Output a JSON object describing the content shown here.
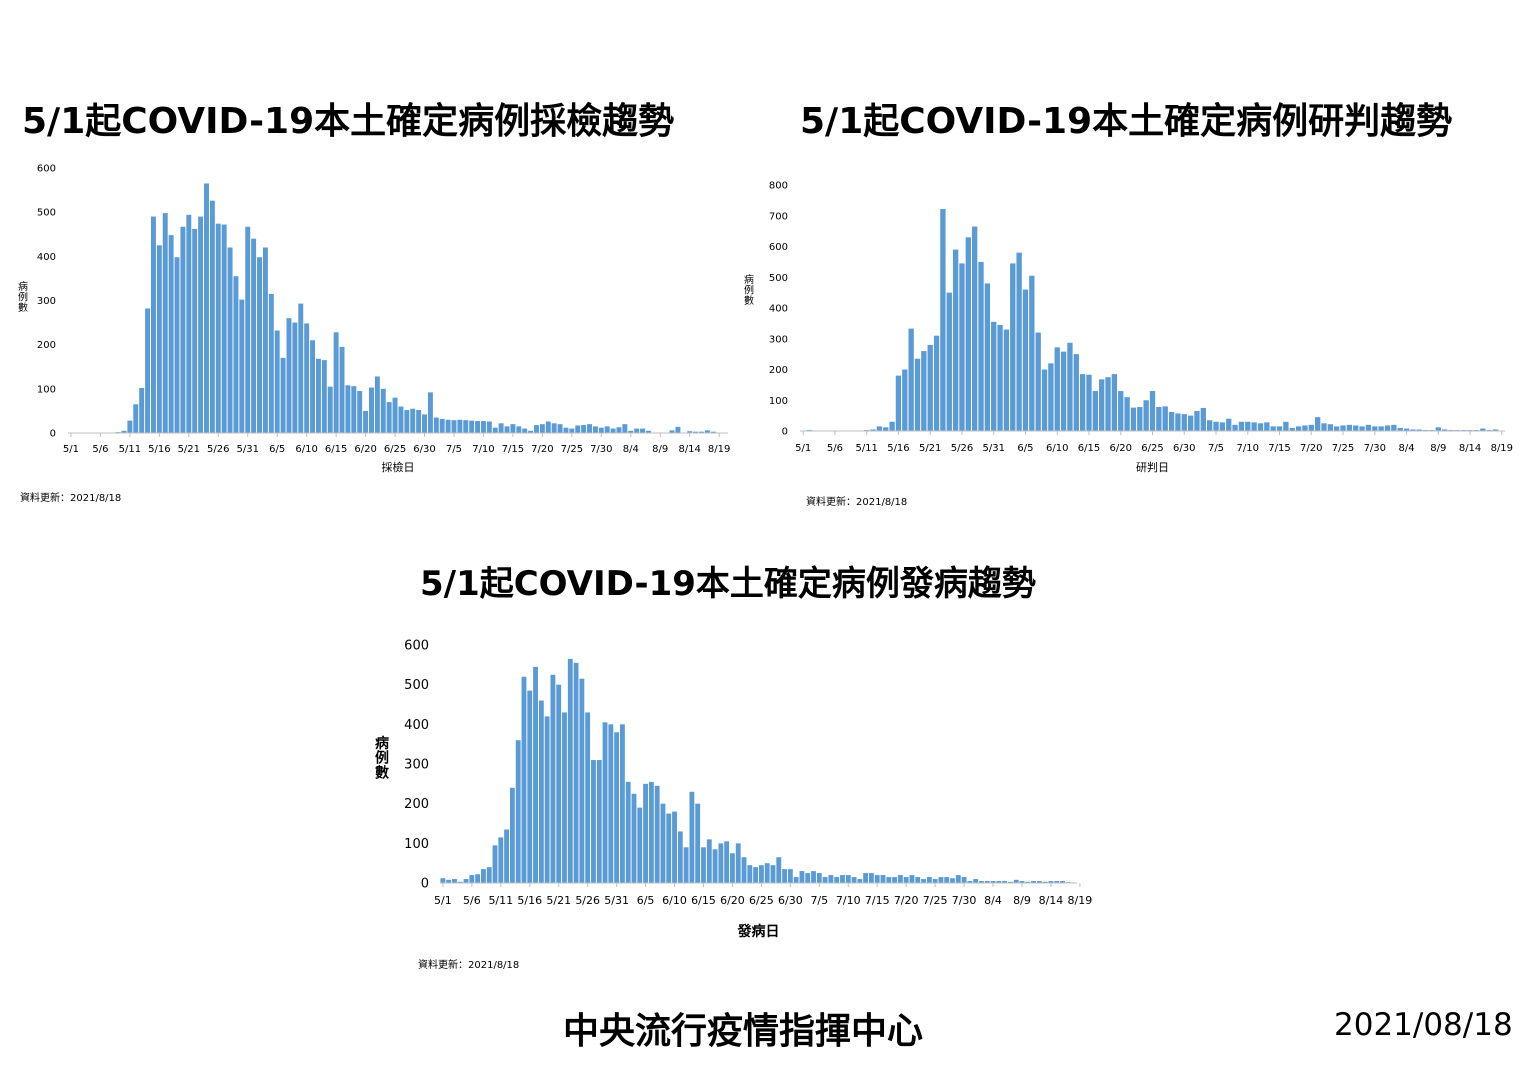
{
  "footer": {
    "organization": "中央流行疫情指揮中心",
    "date": "2021/08/18"
  },
  "colors": {
    "bar": "#5b9bd5",
    "axis": "#bfbfbf"
  },
  "chart_data": [
    {
      "type": "bar",
      "title": "5/1起COVID-19本土確定病例採檢趨勢",
      "xlabel": "採檢日",
      "ylabel": "病例數",
      "update_note": "資料更新：2021/8/18",
      "ylim": [
        0,
        600
      ],
      "yticks": [
        0,
        100,
        200,
        300,
        400,
        500,
        600
      ],
      "x_start": "5/1",
      "x_tick_labels": [
        "5/1",
        "5/6",
        "5/11",
        "5/16",
        "5/21",
        "5/26",
        "5/31",
        "6/5",
        "6/10",
        "6/15",
        "6/20",
        "6/25",
        "6/30",
        "7/5",
        "7/10",
        "7/15",
        "7/20",
        "7/25",
        "7/30",
        "8/4",
        "8/9",
        "8/14",
        "8/19"
      ],
      "values": [
        0,
        0,
        0,
        0,
        0,
        0,
        0,
        0,
        2,
        5,
        28,
        65,
        102,
        282,
        490,
        425,
        498,
        448,
        398,
        467,
        494,
        462,
        490,
        565,
        526,
        474,
        472,
        420,
        355,
        302,
        467,
        440,
        398,
        420,
        315,
        232,
        170,
        260,
        250,
        293,
        248,
        210,
        168,
        165,
        105,
        228,
        195,
        108,
        106,
        95,
        50,
        103,
        128,
        100,
        70,
        80,
        60,
        52,
        55,
        52,
        42,
        92,
        35,
        32,
        30,
        29,
        30,
        29,
        28,
        27,
        27,
        26,
        12,
        22,
        15,
        20,
        15,
        10,
        5,
        18,
        20,
        26,
        22,
        20,
        12,
        10,
        17,
        18,
        20,
        15,
        12,
        15,
        10,
        13,
        20,
        5,
        10,
        10,
        5,
        0,
        0,
        0,
        6,
        14,
        0,
        4,
        3,
        3,
        6,
        3,
        0,
        0
      ]
    },
    {
      "type": "bar",
      "title": "5/1起COVID-19本土確定病例研判趨勢",
      "xlabel": "研判日",
      "ylabel": "病例數",
      "update_note": "資料更新：2021/8/18",
      "ylim": [
        0,
        800
      ],
      "yticks": [
        0,
        100,
        200,
        300,
        400,
        500,
        600,
        700,
        800
      ],
      "x_start": "5/1",
      "x_tick_labels": [
        "5/1",
        "5/6",
        "5/11",
        "5/16",
        "5/21",
        "5/26",
        "5/31",
        "6/5",
        "6/10",
        "6/15",
        "6/20",
        "6/25",
        "6/30",
        "7/5",
        "7/10",
        "7/15",
        "7/20",
        "7/25",
        "7/30",
        "8/4",
        "8/9",
        "8/14",
        "8/19"
      ],
      "values": [
        0,
        3,
        0,
        0,
        0,
        0,
        0,
        0,
        0,
        0,
        3,
        5,
        15,
        12,
        30,
        180,
        200,
        333,
        235,
        260,
        280,
        310,
        722,
        450,
        590,
        545,
        630,
        665,
        550,
        480,
        355,
        345,
        330,
        545,
        580,
        460,
        505,
        320,
        200,
        220,
        272,
        258,
        287,
        250,
        185,
        183,
        130,
        168,
        175,
        185,
        130,
        110,
        76,
        78,
        100,
        130,
        78,
        80,
        62,
        57,
        55,
        50,
        65,
        75,
        35,
        30,
        28,
        40,
        20,
        30,
        30,
        28,
        25,
        28,
        15,
        15,
        30,
        10,
        15,
        18,
        20,
        45,
        25,
        22,
        15,
        18,
        20,
        18,
        15,
        20,
        15,
        15,
        18,
        20,
        10,
        8,
        5,
        5,
        3,
        3,
        12,
        5,
        3,
        3,
        3,
        3,
        3,
        8,
        3,
        5,
        0
      ]
    },
    {
      "type": "bar",
      "title": "5/1起COVID-19本土確定病例發病趨勢",
      "xlabel": "發病日",
      "ylabel": "病例數",
      "update_note": "資料更新：2021/8/18",
      "ylim": [
        0,
        600
      ],
      "yticks": [
        0,
        100,
        200,
        300,
        400,
        500,
        600
      ],
      "x_start": "5/1",
      "x_tick_labels": [
        "5/1",
        "5/6",
        "5/11",
        "5/16",
        "5/21",
        "5/26",
        "5/31",
        "6/5",
        "6/10",
        "6/15",
        "6/20",
        "6/25",
        "6/30",
        "7/5",
        "7/10",
        "7/15",
        "7/20",
        "7/25",
        "7/30",
        "8/4",
        "8/9",
        "8/14",
        "8/19"
      ],
      "values": [
        12,
        8,
        10,
        3,
        10,
        20,
        22,
        35,
        40,
        95,
        115,
        135,
        240,
        360,
        520,
        485,
        545,
        460,
        420,
        525,
        500,
        430,
        565,
        555,
        515,
        430,
        310,
        310,
        405,
        400,
        380,
        400,
        255,
        225,
        190,
        250,
        255,
        245,
        200,
        175,
        180,
        130,
        90,
        230,
        200,
        90,
        110,
        85,
        100,
        105,
        75,
        100,
        65,
        45,
        40,
        45,
        50,
        45,
        65,
        35,
        35,
        15,
        30,
        25,
        30,
        25,
        15,
        20,
        15,
        20,
        20,
        15,
        10,
        25,
        25,
        20,
        20,
        15,
        15,
        20,
        15,
        20,
        15,
        10,
        15,
        10,
        15,
        15,
        12,
        20,
        15,
        5,
        10,
        5,
        5,
        5,
        5,
        5,
        3,
        8,
        5,
        3,
        5,
        5,
        3,
        5,
        5,
        5,
        2,
        0
      ]
    }
  ]
}
